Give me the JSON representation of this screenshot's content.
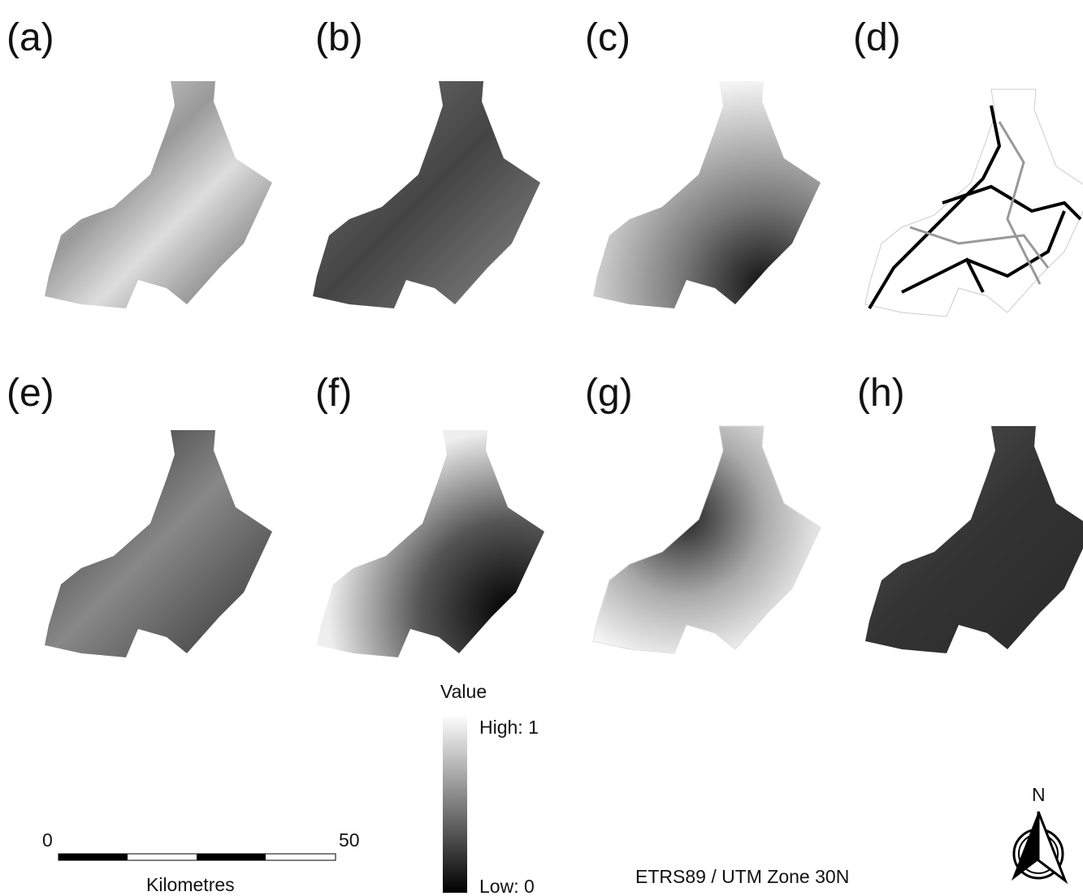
{
  "panels": [
    {
      "label": "(a)"
    },
    {
      "label": "(b)"
    },
    {
      "label": "(c)"
    },
    {
      "label": "(d)"
    },
    {
      "label": "(e)"
    },
    {
      "label": "(f)"
    },
    {
      "label": "(g)"
    },
    {
      "label": "(h)"
    }
  ],
  "legend": {
    "title": "Value",
    "high": "High: 1",
    "low": "Low: 0"
  },
  "scale_bar": {
    "start": "0",
    "end": "50",
    "unit": "Kilometres"
  },
  "crs": "ETRS89 / UTM Zone 30N",
  "north": "N"
}
